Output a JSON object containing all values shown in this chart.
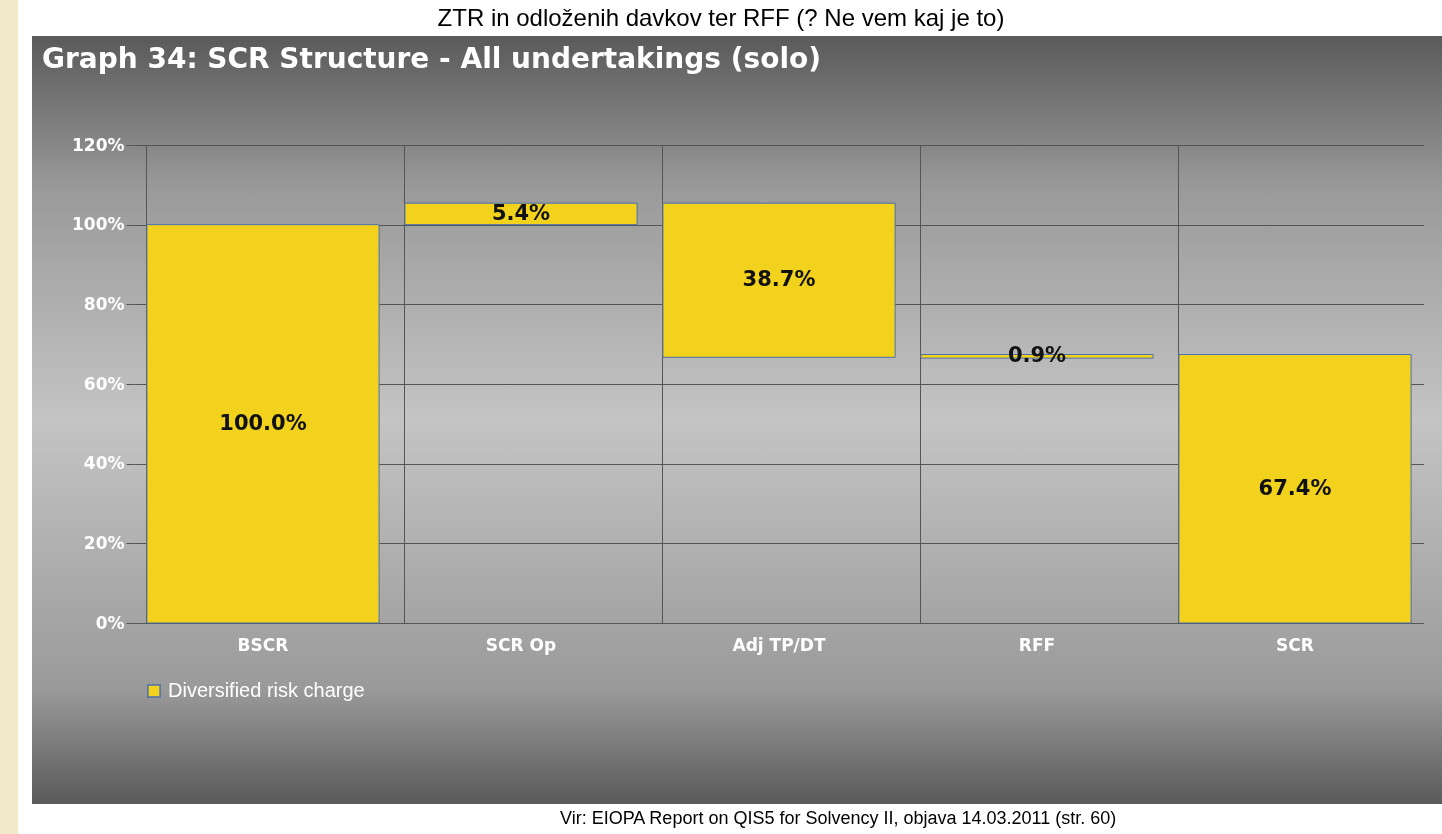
{
  "chart_data": {
    "type": "bar",
    "title": "Graph 34: SCR Structure  - All undertakings (solo)",
    "categories": [
      "BSCR",
      "SCR Op",
      "Adj TP/DT",
      "RFF",
      "SCR"
    ],
    "series": [
      {
        "name": "Diversified risk charge",
        "color": "#f2d21c",
        "base": [
          0,
          100,
          66.7,
          66.5,
          0
        ],
        "values": [
          100,
          5.4,
          38.7,
          0.9,
          67.4
        ],
        "value_labels": [
          "100.0%",
          "5.4%",
          "38.7%",
          "0.9%",
          "67.4%"
        ]
      }
    ],
    "ylim": [
      0,
      120
    ],
    "yticks": [
      {
        "value": 0,
        "label": "0%"
      },
      {
        "value": 20,
        "label": "20%"
      },
      {
        "value": 40,
        "label": "40%"
      },
      {
        "value": 60,
        "label": "60%"
      },
      {
        "value": 80,
        "label": "80%"
      },
      {
        "value": 100,
        "label": "100%"
      },
      {
        "value": 120,
        "label": "120%"
      }
    ],
    "grid": true,
    "legend": "bottom",
    "annotations": [
      "ZTR in odloženih davkov ter RFF (? Ne vem kaj je to)",
      "Vir: EIOPA Report on QIS5 for Solvency II, objava 14.03.2011 (str. 60)"
    ]
  }
}
